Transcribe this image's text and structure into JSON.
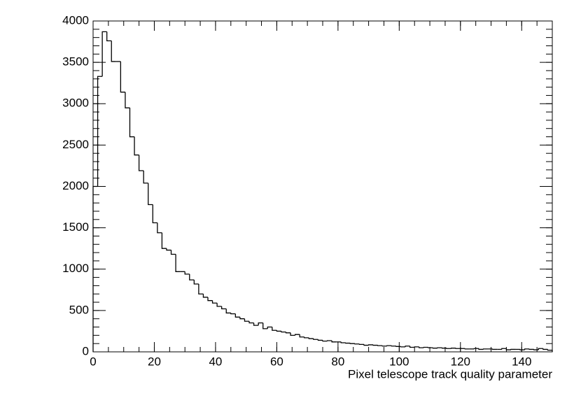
{
  "chart_data": {
    "type": "histogram",
    "x_label": "Pixel telescope track quality parameter",
    "bins": [
      0,
      1.5,
      3,
      4.5,
      6,
      7.5,
      9,
      10.5,
      12,
      13.5,
      15,
      16.5,
      18,
      19.5,
      21,
      22.5,
      24,
      25.5,
      27,
      28.5,
      30,
      31.5,
      33,
      34.5,
      36,
      37.5,
      39,
      40.5,
      42,
      43.5,
      45,
      46.5,
      48,
      49.5,
      51,
      52.5,
      54,
      55.5,
      57,
      58.5,
      60,
      61.5,
      63,
      64.5,
      66,
      67.5,
      69,
      70.5,
      72,
      73.5,
      75,
      76.5,
      78,
      79.5,
      81,
      82.5,
      84,
      85.5,
      87,
      88.5,
      90,
      91.5,
      93,
      94.5,
      96,
      97.5,
      99,
      100.5,
      102,
      103.5,
      105,
      106.5,
      108,
      109.5,
      111,
      112.5,
      114,
      115.5,
      117,
      118.5,
      120,
      121.5,
      123,
      124.5,
      126,
      127.5,
      129,
      130.5,
      132,
      133.5,
      135,
      136.5,
      138,
      139.5,
      141,
      142.5,
      144,
      145.5,
      147,
      148.5,
      150
    ],
    "values": [
      2000,
      3330,
      3870,
      3760,
      3510,
      3510,
      3140,
      2950,
      2600,
      2380,
      2190,
      2040,
      1780,
      1560,
      1440,
      1250,
      1230,
      1180,
      970,
      970,
      940,
      870,
      820,
      700,
      660,
      620,
      590,
      550,
      520,
      470,
      460,
      420,
      400,
      370,
      350,
      320,
      350,
      280,
      300,
      260,
      250,
      240,
      230,
      200,
      210,
      180,
      170,
      160,
      150,
      140,
      130,
      135,
      120,
      120,
      110,
      105,
      100,
      95,
      90,
      80,
      85,
      80,
      75,
      70,
      75,
      70,
      65,
      60,
      70,
      55,
      60,
      50,
      55,
      50,
      45,
      50,
      45,
      40,
      45,
      40,
      40,
      35,
      35,
      40,
      30,
      35,
      35,
      30,
      30,
      40,
      25,
      30,
      30,
      25,
      35,
      30,
      25,
      40,
      30,
      20
    ],
    "color": "#000000",
    "xlim": [
      0,
      150
    ],
    "xticks": [
      0,
      20,
      40,
      60,
      80,
      100,
      120,
      140
    ],
    "ylim": [
      0,
      4000
    ],
    "yticks": [
      0,
      500,
      1000,
      1500,
      2000,
      2500,
      3000,
      3500,
      4000
    ]
  }
}
